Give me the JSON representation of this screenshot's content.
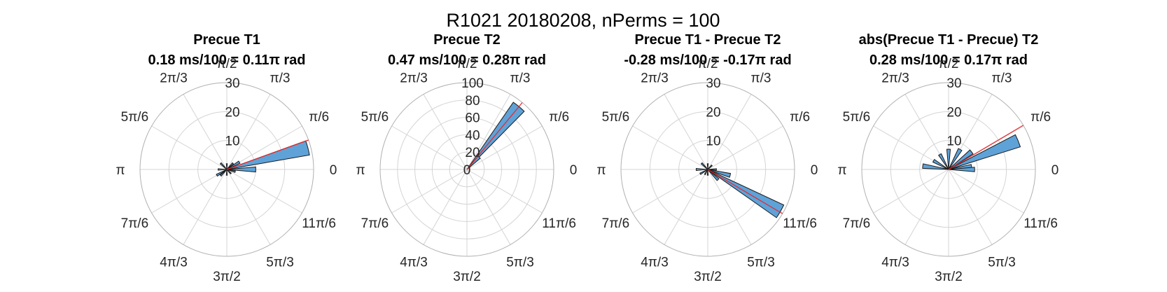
{
  "suptitle": "R1021 20180208, nPerms = 100",
  "theta_tick_labels": [
    "0",
    "π/6",
    "π/3",
    "π/2",
    "2π/3",
    "5π/6",
    "π",
    "7π/6",
    "4π/3",
    "3π/2",
    "5π/3",
    "11π/6"
  ],
  "colors": {
    "bar_fill": "#5fa2d8",
    "bar_edge": "#1a1a1a",
    "mean_line": "#e8262a",
    "grid": "#d4d4d4",
    "outer": "#b0b0b0"
  },
  "chart_data": [
    {
      "type": "polar-histogram",
      "title": "Precue T1",
      "subtitle": "0.18 ms/100 = 0.11π rad",
      "rlim": [
        0,
        30
      ],
      "r_ticks": [
        10,
        20,
        30
      ],
      "mean_angle_pi": 0.11,
      "bins": [
        {
          "angle_pi": 0.083,
          "value": 29
        },
        {
          "angle_pi": 0.0,
          "value": 10
        },
        {
          "angle_pi": 0.167,
          "value": 5
        },
        {
          "angle_pi": 0.25,
          "value": 3
        },
        {
          "angle_pi": 0.5,
          "value": 2
        },
        {
          "angle_pi": 0.75,
          "value": 3
        },
        {
          "angle_pi": 1.0,
          "value": 3
        },
        {
          "angle_pi": 1.167,
          "value": 4
        },
        {
          "angle_pi": 1.25,
          "value": 3
        },
        {
          "angle_pi": 1.5,
          "value": 2
        },
        {
          "angle_pi": 1.75,
          "value": 2
        },
        {
          "angle_pi": 1.917,
          "value": 3
        }
      ]
    },
    {
      "type": "polar-histogram",
      "title": "Precue T2",
      "subtitle": "0.47 ms/100 = 0.28π rad",
      "rlim": [
        0,
        100
      ],
      "r_ticks": [
        0,
        20,
        40,
        60,
        80,
        100
      ],
      "mean_angle_pi": 0.28,
      "bins": [
        {
          "angle_pi": 0.28,
          "value": 94
        },
        {
          "angle_pi": 0.25,
          "value": 20
        }
      ]
    },
    {
      "type": "polar-histogram",
      "title": "Precue T1 - Precue T2",
      "subtitle": "-0.28 ms/100 = -0.17π rad",
      "rlim": [
        0,
        30
      ],
      "r_ticks": [
        10,
        20,
        30
      ],
      "mean_angle_pi": -0.17,
      "bins": [
        {
          "angle_pi": 1.833,
          "value": 29
        },
        {
          "angle_pi": 1.917,
          "value": 8
        },
        {
          "angle_pi": 1.75,
          "value": 5
        },
        {
          "angle_pi": 0.0,
          "value": 3
        },
        {
          "angle_pi": 0.25,
          "value": 2
        },
        {
          "angle_pi": 0.5,
          "value": 2
        },
        {
          "angle_pi": 0.75,
          "value": 3
        },
        {
          "angle_pi": 1.0,
          "value": 4
        },
        {
          "angle_pi": 1.167,
          "value": 3
        },
        {
          "angle_pi": 1.333,
          "value": 2
        },
        {
          "angle_pi": 1.5,
          "value": 2
        }
      ]
    },
    {
      "type": "polar-histogram",
      "title": "abs(Precue T1 - Precue) T2",
      "subtitle": "0.28 ms/100 = 0.17π rad",
      "rlim": [
        0,
        30
      ],
      "r_ticks": [
        10,
        20,
        30
      ],
      "mean_angle_pi": 0.17,
      "bins": [
        {
          "angle_pi": 0.125,
          "value": 26
        },
        {
          "angle_pi": 0.042,
          "value": 8
        },
        {
          "angle_pi": 0.208,
          "value": 10
        },
        {
          "angle_pi": 0.333,
          "value": 8
        },
        {
          "angle_pi": 0.5,
          "value": 7
        },
        {
          "angle_pi": 0.667,
          "value": 6
        },
        {
          "angle_pi": 0.833,
          "value": 6
        },
        {
          "angle_pi": 0.958,
          "value": 9
        },
        {
          "angle_pi": 0.0,
          "value": 9
        }
      ]
    }
  ]
}
